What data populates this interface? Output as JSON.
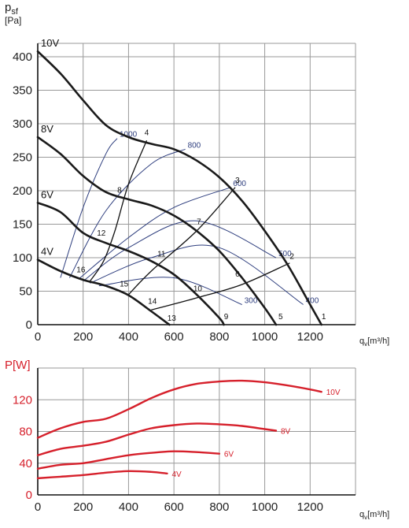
{
  "colors": {
    "grid": "#999999",
    "axis": "#111111",
    "fan_curve": "#1a1a1a",
    "iso_curve": "#2e3e7e",
    "power_curve": "#d6202b"
  },
  "chart_data": [
    {
      "type": "line",
      "ylabel_symbol": "p",
      "ylabel_sub": "sf",
      "yunit": "[Pa]",
      "xlabel_symbol": "q",
      "xlabel_sub": "v",
      "xunit": "[m³/h]",
      "xlim": [
        0,
        1400
      ],
      "ylim": [
        0,
        420
      ],
      "xticks": [
        0,
        200,
        400,
        600,
        800,
        1000,
        1200
      ],
      "yticks": [
        0,
        50,
        100,
        150,
        200,
        250,
        300,
        350,
        400
      ],
      "grid": true,
      "series": [
        {
          "name": "10V",
          "x": [
            0,
            100,
            200,
            300,
            400,
            500,
            600,
            700,
            800,
            900,
            1000,
            1100,
            1200,
            1250
          ],
          "y": [
            408,
            375,
            335,
            298,
            280,
            270,
            262,
            245,
            220,
            185,
            140,
            90,
            30,
            0
          ]
        },
        {
          "name": "8V",
          "x": [
            0,
            100,
            200,
            300,
            400,
            500,
            600,
            700,
            800,
            900,
            1000,
            1050
          ],
          "y": [
            280,
            255,
            222,
            198,
            187,
            178,
            163,
            140,
            110,
            70,
            25,
            0
          ]
        },
        {
          "name": "6V",
          "x": [
            0,
            100,
            200,
            300,
            400,
            500,
            600,
            700,
            800,
            820
          ],
          "y": [
            182,
            168,
            137,
            122,
            110,
            95,
            75,
            45,
            10,
            0
          ]
        },
        {
          "name": "4V",
          "x": [
            0,
            100,
            200,
            300,
            400,
            500,
            580
          ],
          "y": [
            97,
            80,
            67,
            58,
            44,
            20,
            0
          ]
        }
      ],
      "iso_curves": [
        {
          "name": "1000",
          "x": [
            100,
            200,
            300,
            350
          ],
          "y": [
            70,
            175,
            255,
            278
          ]
        },
        {
          "name": "800",
          "x": [
            140,
            300,
            500,
            650
          ],
          "y": [
            70,
            170,
            240,
            262
          ]
        },
        {
          "name": "600",
          "x": [
            180,
            400,
            600,
            850
          ],
          "y": [
            68,
            130,
            175,
            205
          ]
        },
        {
          "name": "500",
          "x": [
            200,
            400,
            700,
            1050
          ],
          "y": [
            65,
            115,
            155,
            100
          ]
        },
        {
          "name": "400",
          "x": [
            230,
            500,
            800,
            1170
          ],
          "y": [
            62,
            100,
            115,
            30
          ]
        },
        {
          "name": "300",
          "x": [
            270,
            600,
            900
          ],
          "y": [
            58,
            70,
            30
          ]
        }
      ],
      "system_lines": [
        {
          "x": [
            480,
            400,
            340,
            290,
            230
          ],
          "y": [
            275,
            210,
            140,
            95,
            65
          ]
        },
        {
          "x": [
            870,
            700,
            500,
            400
          ],
          "y": [
            205,
            140,
            80,
            45
          ]
        },
        {
          "x": [
            1110,
            900,
            700,
            500
          ],
          "y": [
            92,
            60,
            40,
            22
          ]
        }
      ],
      "point_labels": [
        {
          "text": "1",
          "x": 1260,
          "y": 8
        },
        {
          "text": "2",
          "x": 1120,
          "y": 98
        },
        {
          "text": "3",
          "x": 880,
          "y": 212
        },
        {
          "text": "4",
          "x": 480,
          "y": 283
        },
        {
          "text": "5",
          "x": 1070,
          "y": 8
        },
        {
          "text": "6",
          "x": 880,
          "y": 72
        },
        {
          "text": "7",
          "x": 710,
          "y": 150
        },
        {
          "text": "8",
          "x": 360,
          "y": 197
        },
        {
          "text": "9",
          "x": 830,
          "y": 8
        },
        {
          "text": "10",
          "x": 705,
          "y": 50
        },
        {
          "text": "11",
          "x": 545,
          "y": 102
        },
        {
          "text": "12",
          "x": 280,
          "y": 133
        },
        {
          "text": "13",
          "x": 590,
          "y": 6
        },
        {
          "text": "14",
          "x": 505,
          "y": 31
        },
        {
          "text": "15",
          "x": 380,
          "y": 57
        },
        {
          "text": "16",
          "x": 190,
          "y": 78
        }
      ]
    },
    {
      "type": "line",
      "ylabel": "P[W]",
      "xlabel_symbol": "q",
      "xlabel_sub": "v",
      "xunit": "[m³/h]",
      "xlim": [
        0,
        1400
      ],
      "ylim": [
        0,
        160
      ],
      "xticks": [
        0,
        200,
        400,
        600,
        800,
        1000,
        1200
      ],
      "yticks": [
        0,
        40,
        80,
        120
      ],
      "grid": true,
      "series": [
        {
          "name": "10V",
          "x": [
            0,
            100,
            200,
            300,
            400,
            500,
            600,
            700,
            800,
            900,
            1000,
            1100,
            1200,
            1250
          ],
          "y": [
            72,
            84,
            92,
            96,
            108,
            122,
            133,
            140,
            143,
            144,
            142,
            138,
            133,
            130
          ]
        },
        {
          "name": "8V",
          "x": [
            0,
            100,
            200,
            300,
            400,
            500,
            600,
            700,
            800,
            900,
            1000,
            1050
          ],
          "y": [
            50,
            58,
            62,
            67,
            76,
            84,
            88,
            90,
            89,
            87,
            83,
            81
          ]
        },
        {
          "name": "6V",
          "x": [
            0,
            100,
            200,
            300,
            400,
            500,
            600,
            700,
            800
          ],
          "y": [
            33,
            38,
            40,
            45,
            50,
            53,
            55,
            54,
            52
          ]
        },
        {
          "name": "4V",
          "x": [
            0,
            100,
            200,
            300,
            400,
            500,
            570
          ],
          "y": [
            21,
            23,
            25,
            28,
            30,
            29,
            27
          ]
        }
      ]
    }
  ]
}
